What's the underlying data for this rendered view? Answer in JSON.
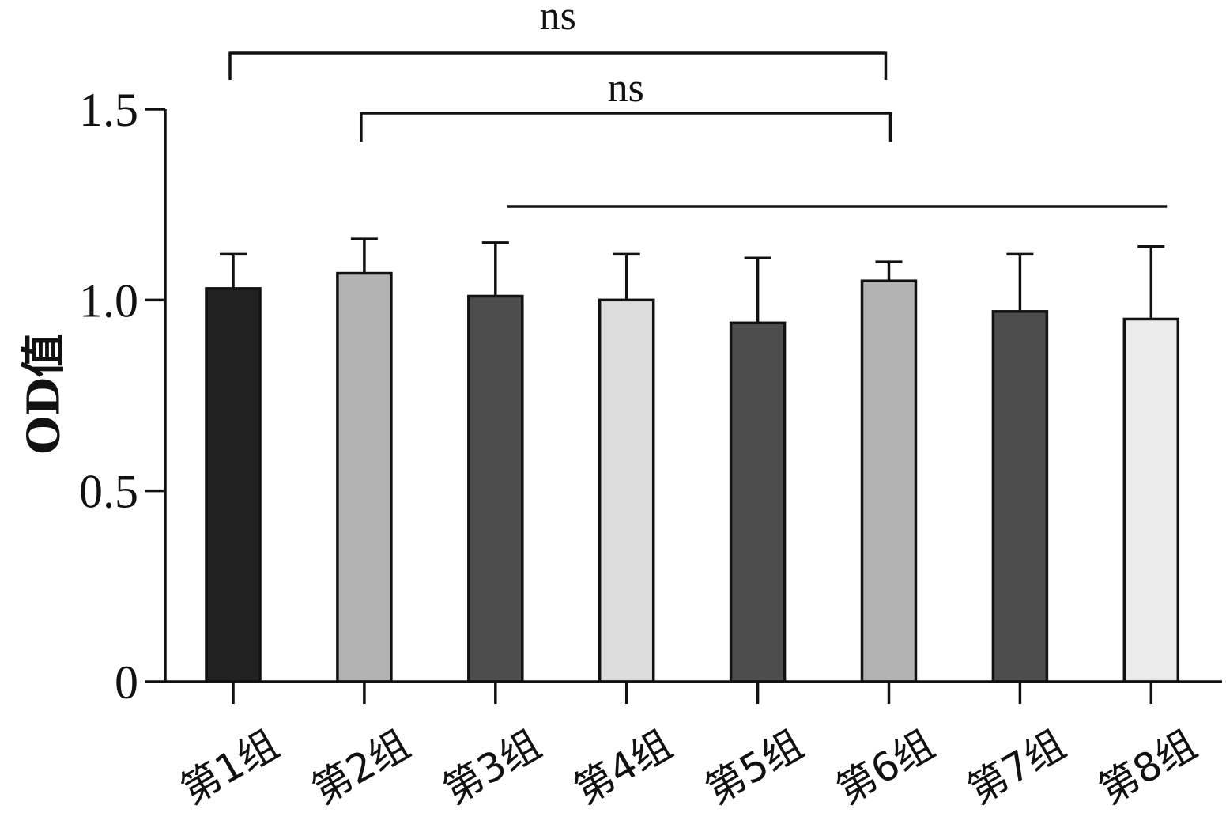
{
  "chart_data": {
    "type": "bar",
    "categories": [
      "第1组",
      "第2组",
      "第3组",
      "第4组",
      "第5组",
      "第6组",
      "第7组",
      "第8组"
    ],
    "values": [
      1.03,
      1.07,
      1.01,
      1.0,
      0.94,
      1.05,
      0.97,
      0.95
    ],
    "errors": [
      0.09,
      0.09,
      0.14,
      0.12,
      0.17,
      0.05,
      0.15,
      0.19
    ],
    "colors": [
      "#222222",
      "#b3b3b3",
      "#4d4d4d",
      "#dddddd",
      "#4d4d4d",
      "#b3b3b3",
      "#4d4d4d",
      "#eaeaea"
    ],
    "ylabel": "OD值",
    "ylim": [
      0,
      1.5
    ],
    "yticks": [
      0,
      0.5,
      1.0,
      1.5
    ],
    "ytick_labels": [
      "0",
      "0.5",
      "1.0",
      "1.5"
    ],
    "grid": false,
    "significance": [
      {
        "from": "第1组",
        "to": "第6组",
        "label": "ns"
      },
      {
        "from": "第2组",
        "to": "第6组",
        "label": "ns"
      },
      {
        "from": "第3组",
        "to": "第8组",
        "label": ""
      }
    ]
  }
}
